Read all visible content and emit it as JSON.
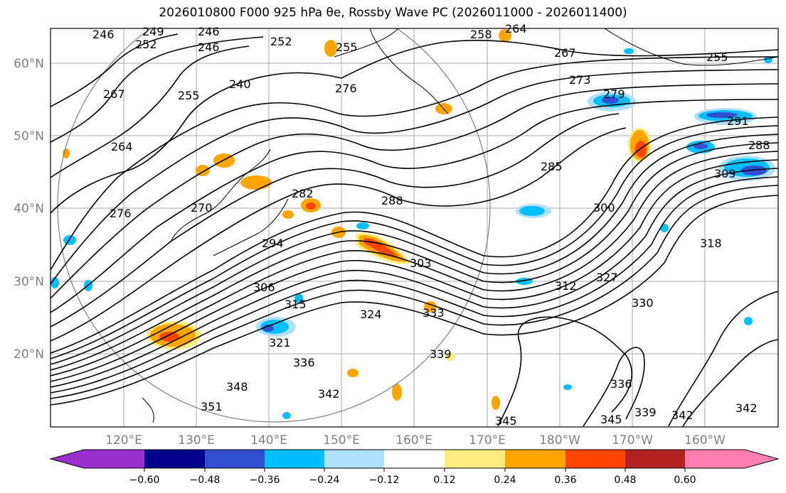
{
  "title_text": "2026010800 F000 925 hPa θe, Rossby Wave PC (2026011000 - 2026011400)",
  "map": {
    "lat_ticks": [
      "60°N",
      "50°N",
      "40°N",
      "30°N",
      "20°N"
    ],
    "lon_ticks": [
      "120°E",
      "130°E",
      "140°E",
      "150°E",
      "160°E",
      "170°E",
      "180°W",
      "170°W",
      "160°W"
    ]
  },
  "contour_labels": [
    "246",
    "249",
    "252",
    "246",
    "246",
    "252",
    "255",
    "258",
    "264",
    "267",
    "273",
    "255",
    "240",
    "255",
    "267",
    "276",
    "279",
    "291",
    "264",
    "285",
    "288",
    "288",
    "270",
    "282",
    "276",
    "300",
    "309",
    "318",
    "294",
    "303",
    "306",
    "312",
    "327",
    "315",
    "324",
    "333",
    "330",
    "321",
    "339",
    "336",
    "348",
    "342",
    "351",
    "336",
    "345",
    "345",
    "339",
    "342",
    "342"
  ],
  "colorbar": {
    "ticks": [
      "−0.60",
      "−0.48",
      "−0.36",
      "−0.24",
      "−0.12",
      "0.12",
      "0.24",
      "0.36",
      "0.48",
      "0.60"
    ],
    "colors": [
      "#9932cc",
      "#00008b",
      "#3050d0",
      "#00bfff",
      "#b0e0ff",
      "#ffffff",
      "#ffec80",
      "#ffa500",
      "#ff4500",
      "#b22222",
      "#ff7fb0"
    ]
  }
}
